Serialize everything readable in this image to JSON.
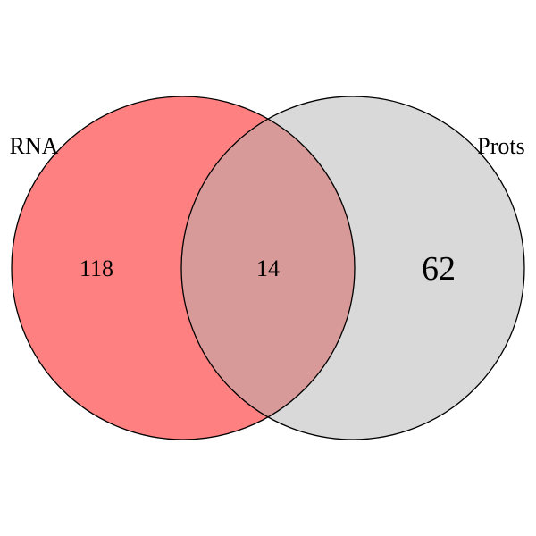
{
  "diagram": {
    "type": "venn-2",
    "sets": [
      {
        "label": "RNA",
        "fill_color": "#ff8080",
        "edge_color": "#000000"
      },
      {
        "label": "Prots",
        "fill_color": "#d9d9d9",
        "edge_color": "#000000"
      }
    ],
    "intersection_color": "#d89999",
    "regions": {
      "only_first": "118",
      "intersection": "14",
      "only_second": "62"
    }
  }
}
